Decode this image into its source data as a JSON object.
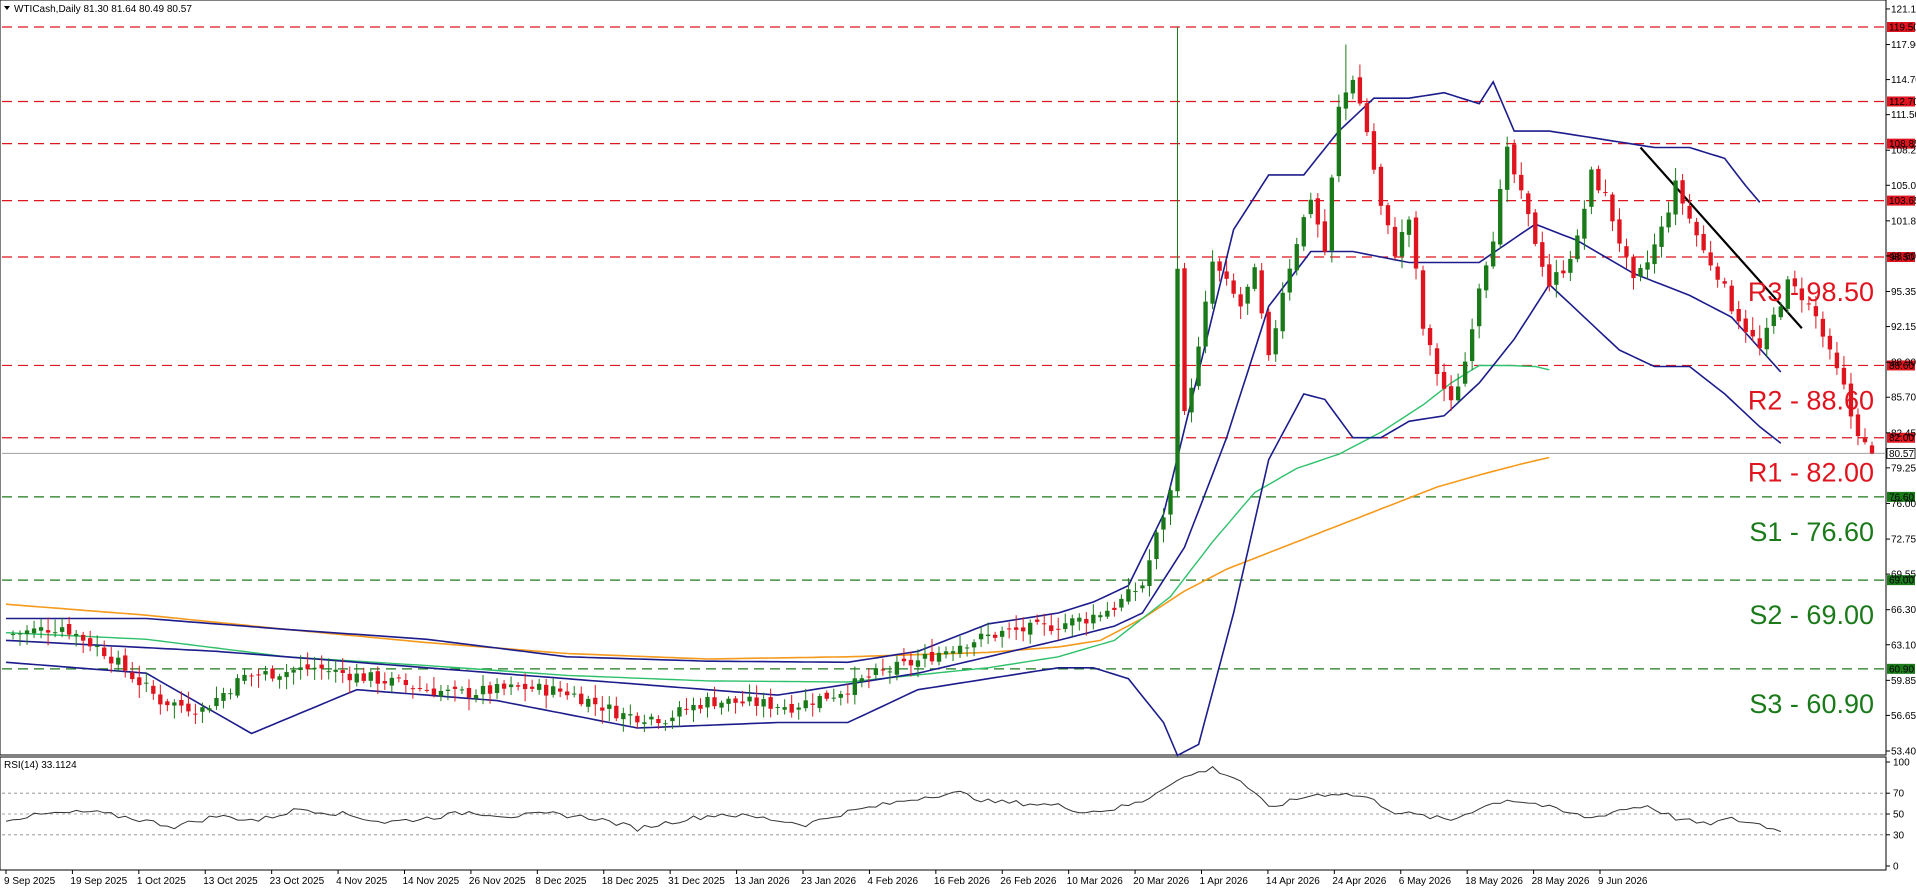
{
  "window": {
    "symbol_info": "WTICash,Daily  81.30 81.64 80.49 80.57",
    "rsi_info": "RSI(14) 33.1124"
  },
  "colors": {
    "background": "#ffffff",
    "bull_candle": "#1a7a1a",
    "bear_candle": "#e0141e",
    "resistance_line": "#e0141e",
    "support_line": "#1a7a1a",
    "bollinger": "#1c1c8c",
    "ma_green": "#2ec16b",
    "ma_orange": "#f59a1c",
    "trendline": "#000000",
    "rsi_line": "#333333",
    "current_price_line": "#a0a0a0",
    "label_box_red": "#e0141e",
    "label_box_green": "#1a7a1a"
  },
  "chart_data": [
    {
      "type": "candlestick",
      "title": "WTICash,Daily",
      "ohlc_last": {
        "open": 81.3,
        "high": 81.64,
        "low": 80.49,
        "close": 80.57
      },
      "ylim": [
        53.4,
        121.6
      ],
      "y_ticks": [
        "121.15",
        "117.90",
        "114.70",
        "111.50",
        "108.25",
        "105.05",
        "101.80",
        "98.60",
        "95.35",
        "92.15",
        "88.90",
        "85.70",
        "82.45",
        "79.25",
        "76.00",
        "72.75",
        "69.55",
        "66.30",
        "63.10",
        "59.85",
        "56.65",
        "53.40"
      ],
      "x_ticks": [
        "9 Sep 2025",
        "19 Sep 2025",
        "1 Oct 2025",
        "13 Oct 2025",
        "23 Oct 2025",
        "4 Nov 2025",
        "14 Nov 2025",
        "26 Nov 2025",
        "8 Dec 2025",
        "18 Dec 2025",
        "31 Dec 2025",
        "13 Jan 2026",
        "23 Jan 2026",
        "4 Feb 2026",
        "16 Feb 2026",
        "26 Feb 2026",
        "10 Mar 2026",
        "20 Mar 2026",
        "1 Apr 2026",
        "14 Apr 2026",
        "24 Apr 2026",
        "6 May 2026",
        "18 May 2026",
        "28 May 2026",
        "9 Jun 2026"
      ],
      "current_price": "80.57",
      "resistance_levels": [
        {
          "value": 119.5,
          "tag": "119.50",
          "label": ""
        },
        {
          "value": 112.7,
          "tag": "112.70",
          "label": ""
        },
        {
          "value": 108.85,
          "tag": "108.85",
          "label": ""
        },
        {
          "value": 103.65,
          "tag": "103.65",
          "label": ""
        },
        {
          "value": 98.5,
          "tag": "98.50",
          "label": "R3 - 98.50"
        },
        {
          "value": 88.6,
          "tag": "88.60",
          "label": "R2 - 88.60"
        },
        {
          "value": 82.0,
          "tag": "82.00",
          "label": "R1 - 82.00"
        }
      ],
      "support_levels": [
        {
          "value": 76.6,
          "tag": "76.60",
          "label": "S1 - 76.60"
        },
        {
          "value": 69.0,
          "tag": "69.00",
          "label": "S2 - 69.00"
        },
        {
          "value": 60.9,
          "tag": "60.90",
          "label": "S3 - 60.90"
        }
      ],
      "price_anchors": [
        [
          0,
          64.0
        ],
        [
          8,
          64.8
        ],
        [
          14,
          62.5
        ],
        [
          22,
          58.0
        ],
        [
          28,
          57.2
        ],
        [
          34,
          60.2
        ],
        [
          44,
          61.0
        ],
        [
          54,
          59.8
        ],
        [
          64,
          58.6
        ],
        [
          74,
          59.2
        ],
        [
          80,
          58.8
        ],
        [
          88,
          56.7
        ],
        [
          94,
          56.4
        ],
        [
          100,
          58.0
        ],
        [
          106,
          57.8
        ],
        [
          112,
          57.5
        ],
        [
          118,
          58.6
        ],
        [
          124,
          60.4
        ],
        [
          130,
          61.6
        ],
        [
          136,
          63.2
        ],
        [
          142,
          64.2
        ],
        [
          148,
          64.7
        ],
        [
          154,
          65.5
        ],
        [
          158,
          66.6
        ],
        [
          162,
          68.6
        ],
        [
          164,
          73.0
        ],
        [
          166,
          77.0
        ],
        [
          167,
          98.0
        ],
        [
          168,
          84.0
        ],
        [
          170,
          90.0
        ],
        [
          172,
          98.0
        ],
        [
          174,
          96.0
        ],
        [
          176,
          94.0
        ],
        [
          178,
          97.0
        ],
        [
          180,
          89.0
        ],
        [
          182,
          95.5
        ],
        [
          184,
          100.0
        ],
        [
          186,
          104.0
        ],
        [
          188,
          99.0
        ],
        [
          190,
          112.0
        ],
        [
          192,
          115.0
        ],
        [
          194,
          110.0
        ],
        [
          196,
          103.0
        ],
        [
          198,
          99.0
        ],
        [
          200,
          102.0
        ],
        [
          202,
          92.0
        ],
        [
          204,
          88.0
        ],
        [
          206,
          85.0
        ],
        [
          208,
          89.0
        ],
        [
          210,
          96.0
        ],
        [
          212,
          100.5
        ],
        [
          214,
          108.0
        ],
        [
          216,
          104.0
        ],
        [
          218,
          100.0
        ],
        [
          220,
          96.0
        ],
        [
          222,
          97.5
        ],
        [
          224,
          100.0
        ],
        [
          226,
          106.0
        ],
        [
          228,
          104.0
        ],
        [
          230,
          100.0
        ],
        [
          232,
          96.0
        ],
        [
          234,
          98.0
        ],
        [
          236,
          101.0
        ],
        [
          238,
          105.0
        ],
        [
          240,
          102.0
        ],
        [
          242,
          99.0
        ],
        [
          244,
          97.0
        ],
        [
          246,
          94.0
        ],
        [
          248,
          92.0
        ],
        [
          250,
          90.0
        ],
        [
          252,
          93.0
        ],
        [
          254,
          96.0
        ],
        [
          256,
          95.0
        ],
        [
          258,
          93.0
        ],
        [
          260,
          89.5
        ],
        [
          262,
          86.5
        ],
        [
          263,
          84.0
        ],
        [
          265,
          81.3
        ],
        [
          266,
          80.57
        ]
      ],
      "bollinger_upper_anchors": [
        [
          0,
          65.5
        ],
        [
          20,
          65.5
        ],
        [
          40,
          64.5
        ],
        [
          60,
          63.6
        ],
        [
          80,
          62.0
        ],
        [
          100,
          61.6
        ],
        [
          120,
          61.5
        ],
        [
          130,
          62.5
        ],
        [
          140,
          65.0
        ],
        [
          150,
          66.0
        ],
        [
          155,
          67.0
        ],
        [
          160,
          68.5
        ],
        [
          165,
          75.0
        ],
        [
          170,
          88.0
        ],
        [
          175,
          101.0
        ],
        [
          180,
          106.0
        ],
        [
          185,
          106.0
        ],
        [
          190,
          110.0
        ],
        [
          195,
          113.0
        ],
        [
          200,
          113.0
        ],
        [
          205,
          113.5
        ],
        [
          210,
          112.5
        ],
        [
          212,
          114.5
        ],
        [
          215,
          110.0
        ],
        [
          220,
          110.0
        ],
        [
          225,
          109.5
        ],
        [
          230,
          109.0
        ],
        [
          235,
          108.5
        ],
        [
          240,
          108.5
        ],
        [
          245,
          107.5
        ],
        [
          248,
          105.0
        ],
        [
          250,
          103.5
        ]
      ],
      "bollinger_lower_anchors": [
        [
          0,
          61.5
        ],
        [
          20,
          60.5
        ],
        [
          35,
          55.0
        ],
        [
          50,
          59.0
        ],
        [
          70,
          58.0
        ],
        [
          90,
          55.5
        ],
        [
          110,
          56.0
        ],
        [
          120,
          56.0
        ],
        [
          130,
          59.0
        ],
        [
          140,
          60.0
        ],
        [
          150,
          61.0
        ],
        [
          155,
          61.0
        ],
        [
          160,
          60.0
        ],
        [
          165,
          56.0
        ],
        [
          167,
          53.0
        ],
        [
          170,
          54.0
        ],
        [
          175,
          66.0
        ],
        [
          180,
          80.0
        ],
        [
          185,
          86.0
        ],
        [
          188,
          85.5
        ],
        [
          192,
          82.0
        ],
        [
          196,
          82.0
        ],
        [
          200,
          83.5
        ],
        [
          205,
          84.0
        ],
        [
          210,
          87.0
        ],
        [
          215,
          91.0
        ],
        [
          220,
          96.0
        ],
        [
          225,
          93.0
        ],
        [
          230,
          90.0
        ],
        [
          235,
          88.5
        ],
        [
          240,
          88.5
        ],
        [
          245,
          86.0
        ],
        [
          250,
          83.0
        ],
        [
          253,
          81.5
        ]
      ],
      "bollinger_middle_anchors": [
        [
          0,
          63.5
        ],
        [
          30,
          62.5
        ],
        [
          60,
          61.0
        ],
        [
          90,
          59.5
        ],
        [
          110,
          58.5
        ],
        [
          130,
          60.5
        ],
        [
          150,
          63.5
        ],
        [
          158,
          64.8
        ],
        [
          162,
          66.0
        ],
        [
          168,
          72.0
        ],
        [
          174,
          82.0
        ],
        [
          180,
          94.0
        ],
        [
          186,
          99.0
        ],
        [
          192,
          99.0
        ],
        [
          200,
          98.0
        ],
        [
          210,
          98.0
        ],
        [
          218,
          101.5
        ],
        [
          224,
          100.0
        ],
        [
          232,
          97.0
        ],
        [
          240,
          95.0
        ],
        [
          246,
          93.0
        ],
        [
          253,
          88.0
        ]
      ],
      "ma_green_anchors": [
        [
          0,
          64.2
        ],
        [
          20,
          63.6
        ],
        [
          40,
          62.0
        ],
        [
          60,
          61.2
        ],
        [
          80,
          60.3
        ],
        [
          100,
          59.8
        ],
        [
          120,
          59.7
        ],
        [
          140,
          61.0
        ],
        [
          150,
          62.0
        ],
        [
          158,
          63.5
        ],
        [
          166,
          67.5
        ],
        [
          172,
          72.5
        ],
        [
          178,
          77.0
        ],
        [
          184,
          79.2
        ],
        [
          190,
          80.5
        ],
        [
          196,
          82.5
        ],
        [
          202,
          85.0
        ],
        [
          206,
          87.0
        ],
        [
          210,
          88.6
        ],
        [
          214,
          88.6
        ],
        [
          218,
          88.5
        ],
        [
          220,
          88.2
        ]
      ],
      "ma_orange_anchors": [
        [
          0,
          66.8
        ],
        [
          20,
          65.8
        ],
        [
          40,
          64.5
        ],
        [
          60,
          63.3
        ],
        [
          80,
          62.3
        ],
        [
          100,
          61.8
        ],
        [
          120,
          62.0
        ],
        [
          140,
          62.4
        ],
        [
          150,
          62.9
        ],
        [
          156,
          63.5
        ],
        [
          162,
          65.5
        ],
        [
          168,
          68.0
        ],
        [
          174,
          70.0
        ],
        [
          180,
          71.5
        ],
        [
          186,
          73.0
        ],
        [
          192,
          74.5
        ],
        [
          198,
          76.0
        ],
        [
          204,
          77.5
        ],
        [
          210,
          78.6
        ],
        [
          216,
          79.6
        ],
        [
          220,
          80.2
        ]
      ],
      "trendline": {
        "from": {
          "i": 233,
          "value": 108.5
        },
        "to": {
          "i": 256,
          "value": 92.0
        }
      }
    },
    {
      "type": "line",
      "title": "RSI(14) 33.1124",
      "ylim": [
        0,
        100
      ],
      "y_ticks": [
        "100",
        "70",
        "50",
        "30",
        "0"
      ],
      "rsi_last": 33.11,
      "rsi_anchors": [
        [
          0,
          45
        ],
        [
          6,
          50
        ],
        [
          12,
          52
        ],
        [
          18,
          46
        ],
        [
          24,
          38
        ],
        [
          30,
          48
        ],
        [
          36,
          44
        ],
        [
          42,
          55
        ],
        [
          48,
          50
        ],
        [
          54,
          42
        ],
        [
          60,
          46
        ],
        [
          66,
          52
        ],
        [
          72,
          48
        ],
        [
          78,
          50
        ],
        [
          84,
          46
        ],
        [
          90,
          36
        ],
        [
          96,
          44
        ],
        [
          102,
          50
        ],
        [
          108,
          46
        ],
        [
          114,
          40
        ],
        [
          120,
          52
        ],
        [
          126,
          60
        ],
        [
          132,
          68
        ],
        [
          136,
          70
        ],
        [
          140,
          62
        ],
        [
          146,
          60
        ],
        [
          150,
          58
        ],
        [
          154,
          52
        ],
        [
          158,
          55
        ],
        [
          162,
          62
        ],
        [
          166,
          80
        ],
        [
          170,
          90
        ],
        [
          172,
          94
        ],
        [
          176,
          82
        ],
        [
          180,
          56
        ],
        [
          184,
          64
        ],
        [
          186,
          68
        ],
        [
          190,
          70
        ],
        [
          194,
          66
        ],
        [
          198,
          52
        ],
        [
          202,
          48
        ],
        [
          206,
          44
        ],
        [
          210,
          56
        ],
        [
          214,
          64
        ],
        [
          218,
          60
        ],
        [
          222,
          52
        ],
        [
          226,
          46
        ],
        [
          230,
          54
        ],
        [
          234,
          58
        ],
        [
          238,
          46
        ],
        [
          242,
          40
        ],
        [
          246,
          45
        ],
        [
          250,
          40
        ],
        [
          253,
          33.1
        ]
      ]
    }
  ]
}
